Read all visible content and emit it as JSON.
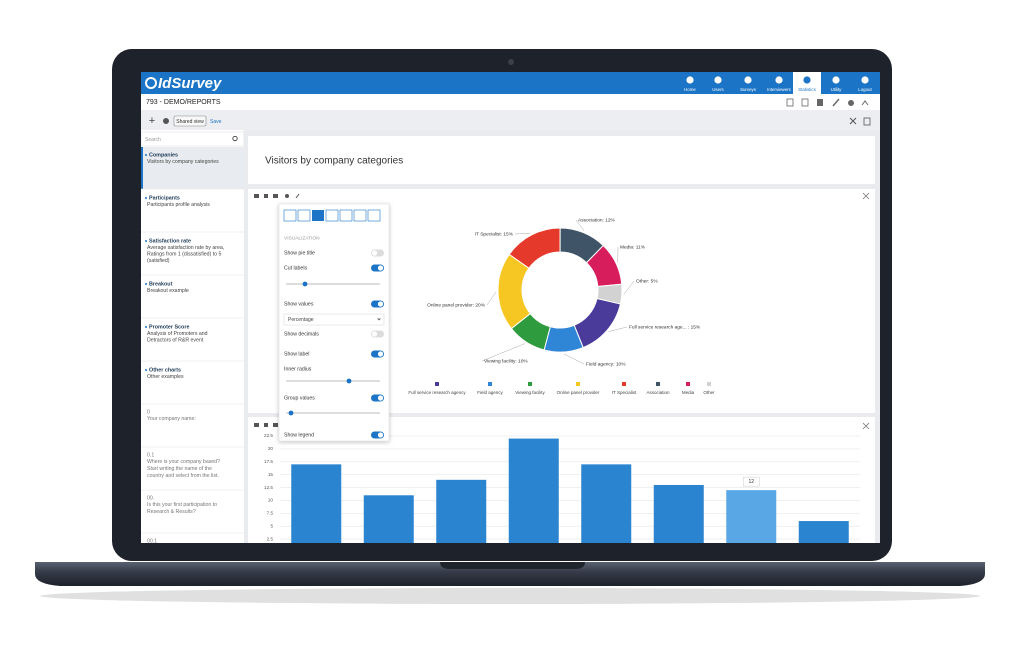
{
  "header": {
    "logo": "IdSurvey",
    "nav": [
      {
        "label": "Home",
        "active": false
      },
      {
        "label": "Users",
        "active": false
      },
      {
        "label": "Surveys",
        "active": false
      },
      {
        "label": "Interviewers",
        "active": false
      },
      {
        "label": "Statistics",
        "active": true
      },
      {
        "label": "Utility",
        "active": false
      },
      {
        "label": "Logout",
        "active": false
      }
    ]
  },
  "breadcrumb": "793 - DEMO/REPORTS",
  "toolbar": {
    "shared_view": "Shared view",
    "save": "Save"
  },
  "sidebar": {
    "search_placeholder": "Search",
    "reports": [
      {
        "title": "Companies",
        "description": [
          "Visitors by company categories"
        ]
      },
      {
        "title": "Participants",
        "description": [
          "Participants profile analysis"
        ]
      },
      {
        "title": "Satisfaction rate",
        "description": [
          "Average satisfaction rate by area,",
          "Ratings from 1 (dissatisfied) to 5",
          "(satisfied)"
        ]
      },
      {
        "title": "Breakout",
        "description": [
          "Breakout example"
        ]
      },
      {
        "title": "Promoter Score",
        "description": [
          "Analysis of Promoters and",
          "Detractors of R&R event"
        ]
      },
      {
        "title": "Other charts",
        "description": [
          "Other examples"
        ]
      }
    ],
    "questions": [
      {
        "code": "0",
        "text": [
          "Your company name:"
        ]
      },
      {
        "code": "0.1",
        "text": [
          "Where is your company based?",
          "Start writing the name of the",
          "country and select from the list."
        ]
      },
      {
        "code": "00.",
        "text": [
          "Is this your first participation to",
          "Research & Results?"
        ]
      },
      {
        "code": "00.1",
        "text": []
      }
    ]
  },
  "report_title": "Visitors by company categories",
  "settings_panel": {
    "section": "VISUALIZATION",
    "options": [
      {
        "label": "Show pie title",
        "on": false
      },
      {
        "label": "Cut labels",
        "on": true
      },
      {
        "label": "Show values",
        "on": true
      },
      {
        "label": "Show decimals",
        "on": false
      },
      {
        "label": "Show label",
        "on": true
      },
      {
        "label": "Inner radius"
      },
      {
        "label": "Group values",
        "on": true
      },
      {
        "label": "Show legend",
        "on": true
      }
    ],
    "value_format": "Percentage"
  },
  "chart_data": [
    {
      "type": "donut",
      "categories": [
        "Full service research agency",
        "Field agency",
        "Viewing facility",
        "Online panel provider",
        "IT Specialist",
        "Association",
        "Media",
        "Other"
      ],
      "values": [
        15,
        10,
        10,
        20,
        15,
        12,
        11,
        5
      ],
      "value_labels": [
        "Full service research age... : 15%",
        "Field agency: 10%",
        "Viewing facility: 10%",
        "Online panel provider: 20%",
        "IT Specialist: 15%",
        "Association: 12%",
        "Media: 11%",
        "Other: 5%"
      ],
      "colors": [
        "#4a3b9b",
        "#2f86d6",
        "#2e9b3f",
        "#f6c623",
        "#e5392b",
        "#3f5567",
        "#d81d5c",
        "#d2d2d2"
      ],
      "legend": "bottom"
    },
    {
      "type": "bar",
      "values": [
        17,
        11,
        14,
        22,
        17,
        13,
        12,
        6
      ],
      "color": "#2a84cf",
      "ylim": [
        0,
        22.5
      ],
      "yticks": [
        2.5,
        5,
        7.5,
        10,
        12.5,
        15,
        17.5,
        20,
        22.5
      ],
      "grid": true
    }
  ]
}
